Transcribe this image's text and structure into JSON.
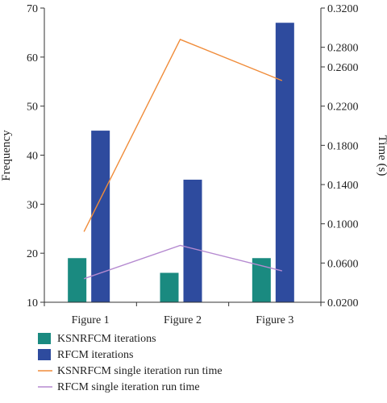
{
  "chart_data": {
    "type": "bar",
    "categories": [
      "Figure 1",
      "Figure 2",
      "Figure 3"
    ],
    "ylabel": "Frequency",
    "y2label": "Time (s)",
    "ylim": [
      10,
      70
    ],
    "yticks": [
      10,
      20,
      30,
      40,
      50,
      60,
      70
    ],
    "y2lim": [
      0.02,
      0.32
    ],
    "y2ticks": [
      "0.0200",
      "0.0600",
      "0.1000",
      "0.1400",
      "0.1800",
      "0.2200",
      "0.2600",
      "0.2800",
      "0.3200"
    ],
    "y2tick_values": [
      0.02,
      0.06,
      0.1,
      0.14,
      0.18,
      0.22,
      0.26,
      0.28,
      0.32
    ],
    "grid": false,
    "legend_position": "bottom-left",
    "bar_series": [
      {
        "name": "KSNRFCM iterations",
        "color": "#1a8a80",
        "values": [
          19,
          16,
          19
        ]
      },
      {
        "name": "RFCM iterations",
        "color": "#2e4b9e",
        "values": [
          45,
          35,
          67
        ]
      }
    ],
    "line_series": [
      {
        "name": "KSNRFCM single iteration run time",
        "color": "#f08c3a",
        "axis": "right",
        "values": [
          0.092,
          0.288,
          0.246
        ]
      },
      {
        "name": "RFCM single iteration run time",
        "color": "#b58ad0",
        "axis": "right",
        "values": [
          0.044,
          0.078,
          0.052
        ]
      }
    ]
  }
}
